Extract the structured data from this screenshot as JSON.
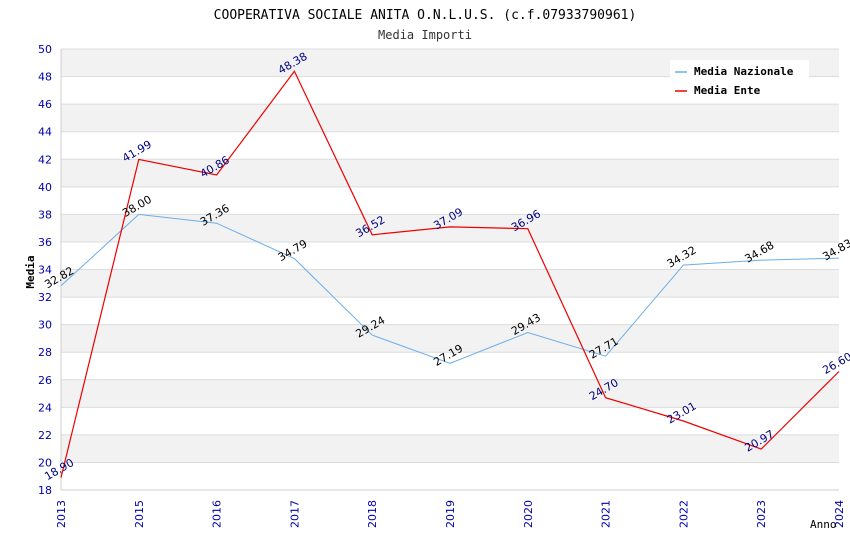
{
  "chart_data": {
    "type": "line",
    "title": "COOPERATIVA SOCIALE ANITA O.N.L.U.S. (c.f.07933790961)",
    "subtitle": "Media Importi",
    "xlabel": "Anno",
    "ylabel": "Media",
    "ylim": [
      18,
      50
    ],
    "ytick_step": 2,
    "grid": true,
    "legend_position": "top-right",
    "categories": [
      "2013",
      "2015",
      "2016",
      "2017",
      "2018",
      "2019",
      "2020",
      "2021",
      "2022",
      "2023",
      "2024"
    ],
    "series": [
      {
        "name": "Media Nazionale",
        "color": "#6aaee8",
        "values": [
          32.82,
          38.0,
          37.36,
          34.79,
          29.24,
          27.19,
          29.43,
          27.71,
          34.32,
          34.68,
          34.83
        ],
        "labels": [
          "32.82",
          "38.00",
          "37.36",
          "34.79",
          "29.24",
          "27.19",
          "29.43",
          "27.71",
          "34.32",
          "34.68",
          "34.83"
        ]
      },
      {
        "name": "Media Ente",
        "color": "#ee0000",
        "values": [
          18.9,
          41.99,
          40.86,
          48.38,
          36.52,
          37.09,
          36.96,
          24.7,
          23.01,
          20.97,
          26.6
        ],
        "labels": [
          "18.90",
          "41.99",
          "40.86",
          "48.38",
          "36.52",
          "37.09",
          "36.96",
          "24.70",
          "23.01",
          "20.97",
          "26.60"
        ]
      }
    ]
  }
}
